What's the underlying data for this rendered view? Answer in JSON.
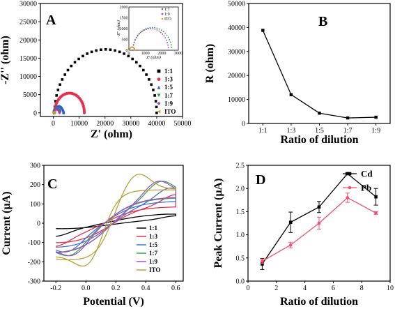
{
  "chart_data": [
    {
      "panel": "A",
      "type": "scatter",
      "xlabel": "Z' (ohm)",
      "ylabel": "-Z'' (ohm)",
      "xlim": [
        -5000,
        50000
      ],
      "ylim": [
        -1000,
        30000
      ],
      "xticks": [
        0,
        10000,
        20000,
        30000,
        40000,
        50000
      ],
      "yticks": [
        0,
        5000,
        10000,
        15000,
        20000,
        25000,
        30000
      ],
      "legend_position": "right",
      "series": [
        {
          "name": "1:1",
          "color": "#000000",
          "marker": "square",
          "shape": "semicircle",
          "x_start": 500,
          "x_end": 40000,
          "apex_y": 17400
        },
        {
          "name": "1:3",
          "color": "#e8314a",
          "marker": "circle",
          "shape": "semicircle",
          "x_start": 500,
          "x_end": 12000,
          "apex_y": 5400
        },
        {
          "name": "1:5",
          "color": "#2f5fd0",
          "marker": "triangle-up",
          "shape": "semicircle",
          "x_start": 300,
          "x_end": 4000,
          "apex_y": 1800
        },
        {
          "name": "1:7",
          "color": "#2a9d3b",
          "marker": "triangle-down",
          "shape": "semicircle",
          "x_start": 250,
          "x_end": 2600,
          "apex_y": 1050
        },
        {
          "name": "1:9",
          "color": "#9b3dbf",
          "marker": "diamond",
          "shape": "semicircle",
          "x_start": 250,
          "x_end": 2400,
          "apex_y": 1000
        },
        {
          "name": "ITO",
          "color": "#c9a227",
          "marker": "triangle-left",
          "shape": "semicircle",
          "x_start": 50,
          "x_end": 350,
          "apex_y": 150
        }
      ],
      "inset": {
        "xlabel": "Z' (ohm)",
        "ylabel": "-Z'' (ohm)",
        "xlim": [
          0,
          3000
        ],
        "ylim": [
          0,
          2000
        ],
        "xticks": [
          0,
          1000,
          2000,
          3000
        ],
        "yticks": [
          0,
          500,
          1000,
          1500,
          2000
        ],
        "legend": [
          "1:7",
          "1:9",
          "ITO"
        ]
      }
    },
    {
      "panel": "B",
      "type": "line",
      "xlabel": "Ratio of dilution",
      "ylabel": "R (ohm)",
      "categories": [
        "1:1",
        "1:3",
        "1:5",
        "1:7",
        "1:9"
      ],
      "values": [
        38800,
        12000,
        4300,
        2300,
        2600
      ],
      "ylim": [
        0,
        50000
      ],
      "yticks": [
        0,
        10000,
        20000,
        30000,
        40000,
        50000
      ],
      "color": "#000000"
    },
    {
      "panel": "C",
      "type": "line",
      "xlabel": "Potential (V)",
      "ylabel": "Current (µA)",
      "xlim": [
        -0.28,
        0.65
      ],
      "ylim": [
        -300,
        300
      ],
      "xticks": [
        -0.2,
        0.0,
        0.2,
        0.4,
        0.6
      ],
      "xtick_labels": [
        "-0.2",
        "0.0",
        "0.2",
        "0.4",
        "0.6"
      ],
      "yticks": [
        -300,
        -200,
        -100,
        0,
        100,
        200,
        300
      ],
      "legend_position": "bottom-right",
      "series": [
        {
          "name": "1:1",
          "color": "#000000",
          "i_max": 47,
          "i_min": -75,
          "pa": 0.6,
          "pc": -0.2
        },
        {
          "name": "1:3",
          "color": "#e8314a",
          "i_max": 150,
          "i_min": -120,
          "pa": 0.6,
          "pc": -0.2
        },
        {
          "name": "1:5",
          "color": "#4b6fd8",
          "i_max": 185,
          "i_min": -160,
          "pa": 0.56,
          "pc": -0.12
        },
        {
          "name": "1:7",
          "color": "#3aa84a",
          "i_max": 225,
          "i_min": -185,
          "pa": 0.5,
          "pc": -0.1
        },
        {
          "name": "1:9",
          "color": "#a24fd0",
          "i_max": 228,
          "i_min": -190,
          "pa": 0.48,
          "pc": -0.08
        },
        {
          "name": "ITO",
          "color": "#b8a03a",
          "i_max": 258,
          "i_min": -240,
          "pa": 0.34,
          "pc": 0.02
        }
      ]
    },
    {
      "panel": "D",
      "type": "line",
      "xlabel": "Ratio of dilution",
      "ylabel": "Peak Current (µA)",
      "xlim": [
        0,
        10
      ],
      "ylim": [
        0.0,
        2.5
      ],
      "xticks": [
        0,
        2,
        4,
        6,
        8,
        10
      ],
      "yticks": [
        0.0,
        0.5,
        1.0,
        1.5,
        2.0,
        2.5
      ],
      "ytick_labels": [
        "0.0",
        "0.5",
        "1.0",
        "1.5",
        "2.0",
        "2.5"
      ],
      "legend_position": "top-right",
      "x": [
        1,
        3,
        5,
        7,
        9
      ],
      "series": [
        {
          "name": "Cd",
          "color": "#000000",
          "marker": "square",
          "values": [
            0.37,
            1.27,
            1.6,
            2.32,
            1.82
          ],
          "errors": [
            0.12,
            0.22,
            0.12,
            0.02,
            0.18
          ]
        },
        {
          "name": "Pb",
          "color": "#f0506e",
          "marker": "circle",
          "values": [
            0.43,
            0.78,
            1.25,
            1.8,
            1.47
          ],
          "errors": [
            0.05,
            0.06,
            0.13,
            0.1,
            0.03
          ]
        }
      ]
    }
  ]
}
